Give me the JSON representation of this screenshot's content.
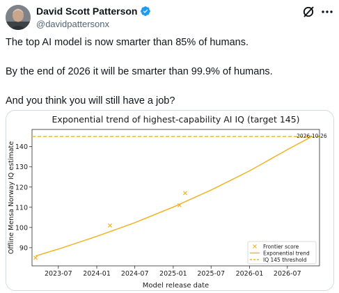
{
  "author": {
    "display_name": "David Scott Patterson",
    "handle": "@davidpattersonx",
    "verified": true,
    "verified_color": "#1d9bf0"
  },
  "actions": {
    "grok_icon": "grok-icon",
    "more_icon": "more-icon"
  },
  "tweet": {
    "lines": [
      "The top AI model is now smarter than 85% of humans.",
      "By the end of 2026 it will be smarter than 99.9% of humans.",
      "And you think you will still have a job?"
    ]
  },
  "chart_data": {
    "type": "scatter",
    "title": "Exponential trend of highest-capability AI IQ (target 145)",
    "xlabel": "Model release date",
    "ylabel": "Offline Mensa Norway IQ estimate",
    "xlim": [
      "2023-02-25",
      "2026-12-02"
    ],
    "ylim": [
      81,
      148.5
    ],
    "x_ticks": [
      "2023-07",
      "2024-01",
      "2024-07",
      "2025-01",
      "2025-07",
      "2026-01",
      "2026-07"
    ],
    "y_ticks": [
      90,
      100,
      110,
      120,
      130,
      140
    ],
    "color": "#f0b323",
    "series": [
      {
        "name": "Frontier score",
        "kind": "points",
        "x": [
          "2023-03-14",
          "2024-03-04",
          "2025-01-31",
          "2025-02-27"
        ],
        "y": [
          85,
          101,
          111,
          117
        ]
      },
      {
        "name": "Exponential trend",
        "kind": "line",
        "x": [
          "2023-03-14",
          "2023-07-01",
          "2024-01-01",
          "2024-07-01",
          "2025-01-01",
          "2025-07-01",
          "2026-01-01",
          "2026-07-01",
          "2026-10-26"
        ],
        "y": [
          85.9,
          89.3,
          95.6,
          102.4,
          110.1,
          118.5,
          128.0,
          138.5,
          145
        ]
      },
      {
        "name": "IQ 145 threshold",
        "kind": "hline",
        "y": 145
      }
    ],
    "annotations": [
      {
        "text": "2026-10-26",
        "x": "2026-10-26",
        "y": 145
      }
    ],
    "legend_position": "lower-right",
    "grid": false
  }
}
